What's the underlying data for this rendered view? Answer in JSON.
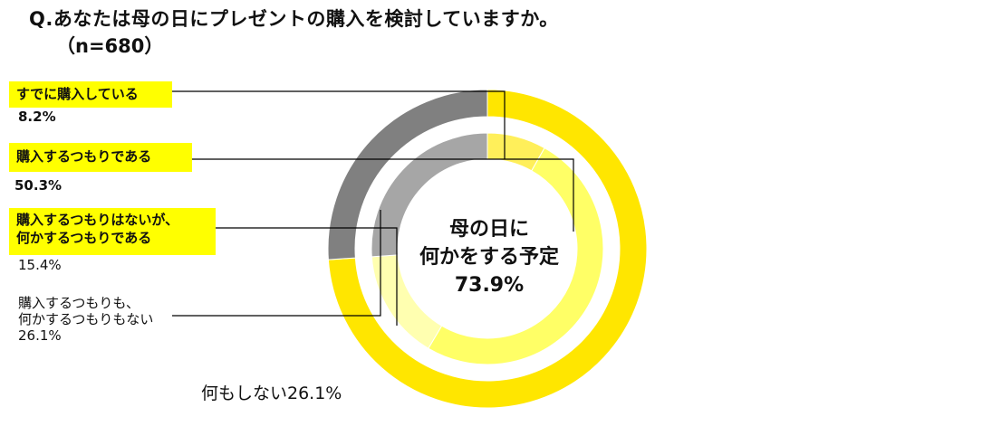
{
  "title": "Q.あなたは母の日にプレゼントの購入を検討していますか。",
  "subtitle": "（n=680）",
  "center_label": {
    "line1": "母の日に",
    "line2": "何かをする予定",
    "value": "73.9%"
  },
  "labels": [
    {
      "name": "すでに購入している",
      "value": "8.2%"
    },
    {
      "name": "購入するつもりである",
      "value": "50.3%"
    },
    {
      "name_line1": "購入するつもりはないが、",
      "name_line2": "何かするつもりである",
      "value": "15.4%"
    },
    {
      "name_line1": "購入するつもりも、",
      "name_line2": "何かするつもりもない",
      "value": "26.1%"
    }
  ],
  "outer_note": "何もしない26.1%",
  "chart_data": {
    "type": "donut",
    "title": "Q.あなたは母の日にプレゼントの購入を検討していますか。",
    "subtitle": "（n=680）",
    "rings": [
      {
        "ring": "outer",
        "categories": [
          "母の日に何かをする予定",
          "何もしない"
        ],
        "values": [
          73.9,
          26.1
        ],
        "colors": [
          "#ffe600",
          "#808080"
        ]
      },
      {
        "ring": "inner",
        "categories": [
          "すでに購入している",
          "購入するつもりである",
          "購入するつもりはないが、何かするつもりである",
          "購入するつもりも、何かするつもりもない"
        ],
        "values": [
          8.2,
          50.3,
          15.4,
          26.1
        ],
        "colors": [
          "#ffef5a",
          "#ffff66",
          "#ffffb0",
          "#a6a6a6"
        ]
      }
    ]
  }
}
